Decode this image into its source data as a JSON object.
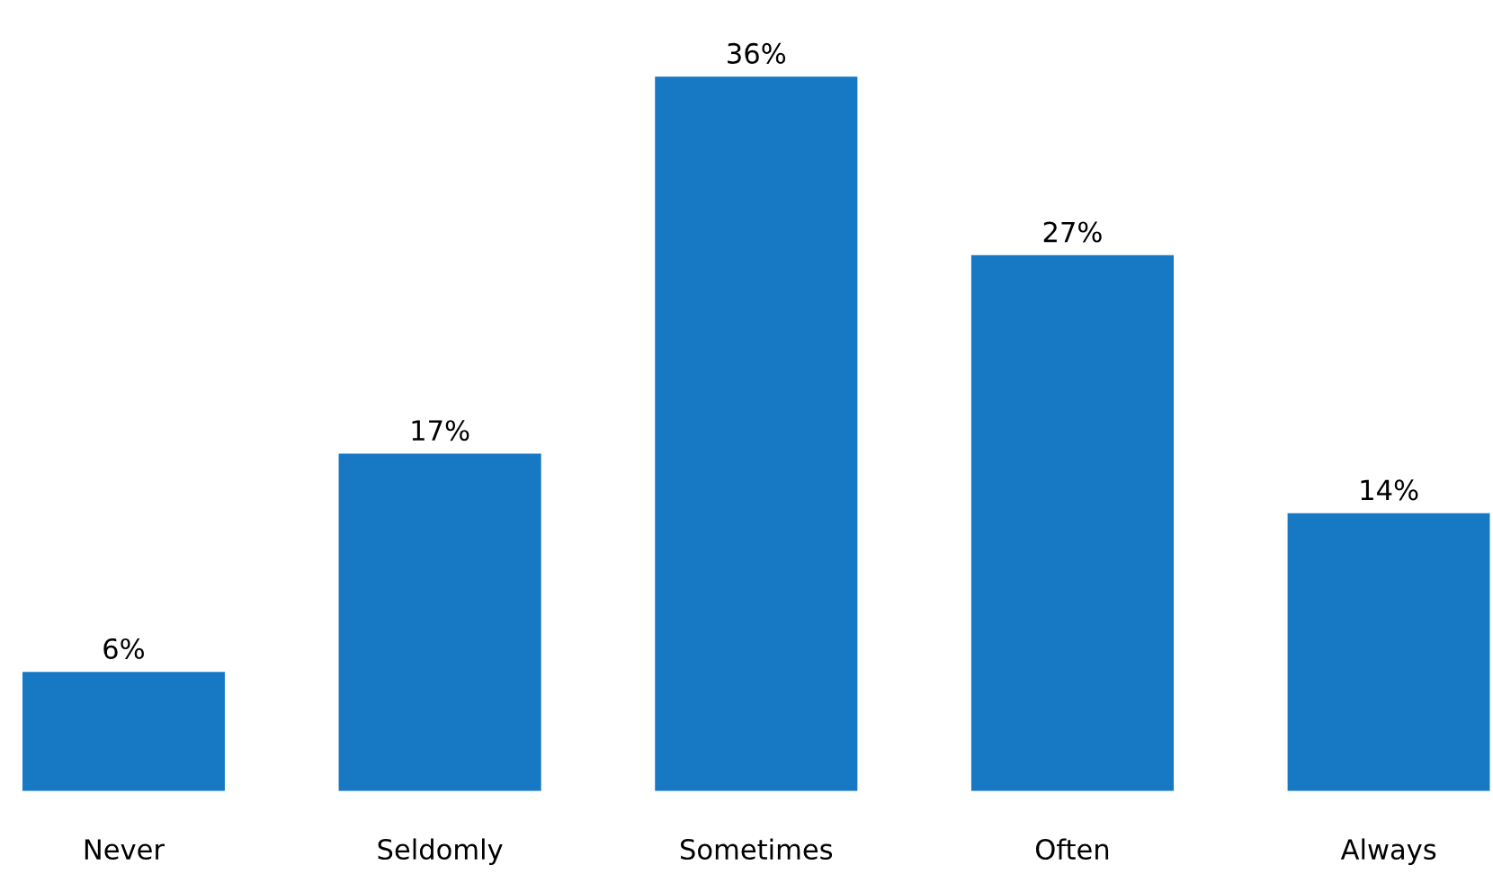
{
  "chart_data": {
    "type": "bar",
    "categories": [
      "Never",
      "Seldomly",
      "Sometimes",
      "Often",
      "Always"
    ],
    "values": [
      6,
      17,
      36,
      27,
      14
    ],
    "value_labels": [
      "6%",
      "17%",
      "36%",
      "27%",
      "14%"
    ],
    "color": "#1778c4",
    "grid": false,
    "legend": false
  }
}
